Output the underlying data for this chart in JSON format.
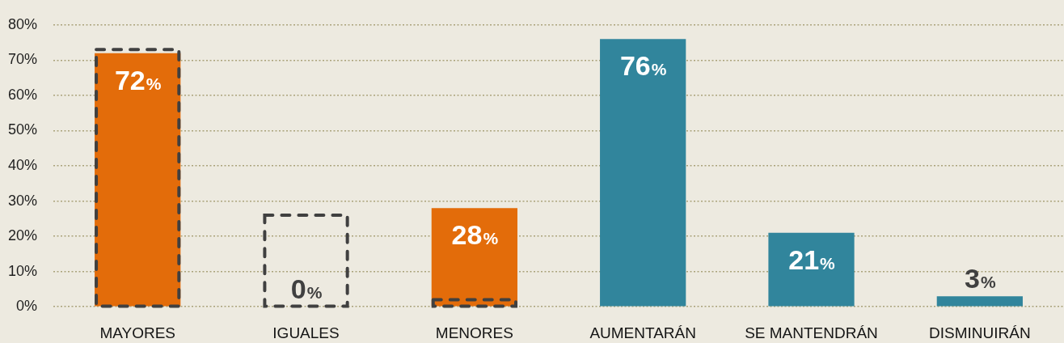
{
  "chart_data": {
    "type": "bar",
    "categories": [
      "MAYORES",
      "IGUALES",
      "MENORES",
      "AUMENTARÁN",
      "SE MANTENDRÁN",
      "DISMINUIRÁN"
    ],
    "series": [
      {
        "colors": [
          "#e36c0a",
          "#e36c0a",
          "#e36c0a",
          "#31859c",
          "#31859c",
          "#31859c"
        ],
        "values": [
          72,
          0,
          28,
          76,
          21,
          3
        ],
        "value_labels": [
          "72%",
          "0%",
          "28%",
          "76%",
          "21%",
          "3%"
        ]
      },
      {
        "color": "#404040",
        "line_style": "dashed",
        "values": [
          73,
          26,
          2,
          null,
          null,
          null
        ]
      }
    ],
    "ylim": [
      0,
      80
    ],
    "yticks": [
      {
        "value": 0,
        "label": "0%"
      },
      {
        "value": 10,
        "label": "10%"
      },
      {
        "value": 20,
        "label": "20%"
      },
      {
        "value": 30,
        "label": "30%"
      },
      {
        "value": 40,
        "label": "40%"
      },
      {
        "value": 50,
        "label": "50%"
      },
      {
        "value": 60,
        "label": "60%"
      },
      {
        "value": 70,
        "label": "70%"
      },
      {
        "value": 80,
        "label": "80%"
      }
    ],
    "grid": "y",
    "legend": false
  }
}
